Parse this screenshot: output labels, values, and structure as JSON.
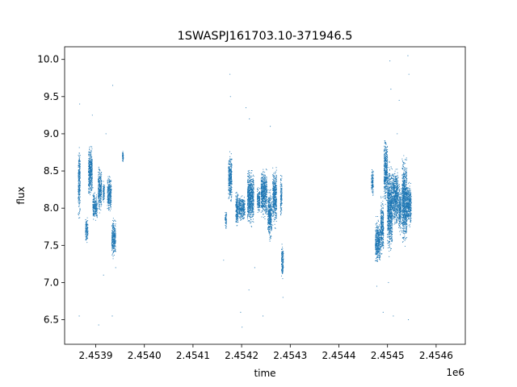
{
  "chart_data": {
    "type": "scatter",
    "title": "1SWASPJ161703.10-371946.5",
    "xlabel": "time",
    "ylabel": "flux",
    "x_offset_label": "1e6",
    "xlim": [
      2453836.0,
      2454660.0
    ],
    "ylim": [
      6.17,
      10.17
    ],
    "x_ticks": [
      2453900,
      2454000,
      2454100,
      2454200,
      2454300,
      2454400,
      2454500,
      2454600
    ],
    "x_tick_labels": [
      "2.4539",
      "2.4540",
      "2.4541",
      "2.4542",
      "2.4543",
      "2.4544",
      "2.4545",
      "2.4546"
    ],
    "y_ticks": [
      6.5,
      7.0,
      7.5,
      8.0,
      8.5,
      9.0,
      9.5,
      10.0
    ],
    "y_tick_labels": [
      "6.5",
      "7.0",
      "7.5",
      "8.0",
      "8.5",
      "9.0",
      "9.5",
      "10.0"
    ],
    "grid": false,
    "marker_color": "#1f77b4",
    "segments": [
      {
        "x": [
          2453864,
          2453868
        ],
        "y": [
          7.8,
          8.9
        ]
      },
      {
        "x": [
          2453879,
          2453884
        ],
        "y": [
          7.5,
          7.9
        ]
      },
      {
        "x": [
          2453885,
          2453893
        ],
        "y": [
          8.1,
          8.9
        ]
      },
      {
        "x": [
          2453894,
          2453898
        ],
        "y": [
          7.8,
          8.3
        ]
      },
      {
        "x": [
          2453898,
          2453903
        ],
        "y": [
          7.8,
          8.2
        ]
      },
      {
        "x": [
          2453905,
          2453912
        ],
        "y": [
          7.9,
          8.6
        ]
      },
      {
        "x": [
          2453915,
          2453918
        ],
        "y": [
          8.0,
          8.4
        ]
      },
      {
        "x": [
          2453924,
          2453932
        ],
        "y": [
          7.9,
          8.5
        ]
      },
      {
        "x": [
          2453933,
          2453941
        ],
        "y": [
          7.3,
          7.9
        ]
      },
      {
        "x": [
          2453955,
          2453957
        ],
        "y": [
          8.6,
          8.8
        ]
      },
      {
        "x": [
          2454166,
          2454169
        ],
        "y": [
          7.7,
          8.0
        ]
      },
      {
        "x": [
          2454173,
          2454180
        ],
        "y": [
          8.0,
          8.8
        ]
      },
      {
        "x": [
          2454188,
          2454193
        ],
        "y": [
          7.7,
          8.3
        ]
      },
      {
        "x": [
          2454194,
          2454207
        ],
        "y": [
          7.8,
          8.2
        ]
      },
      {
        "x": [
          2454212,
          2454225
        ],
        "y": [
          7.7,
          8.6
        ]
      },
      {
        "x": [
          2454232,
          2454238
        ],
        "y": [
          7.9,
          8.3
        ]
      },
      {
        "x": [
          2454240,
          2454252
        ],
        "y": [
          7.8,
          8.6
        ]
      },
      {
        "x": [
          2454254,
          2454262
        ],
        "y": [
          7.5,
          8.3
        ]
      },
      {
        "x": [
          2454264,
          2454272
        ],
        "y": [
          7.7,
          8.6
        ]
      },
      {
        "x": [
          2454280,
          2454283
        ],
        "y": [
          7.8,
          8.5
        ]
      },
      {
        "x": [
          2454282,
          2454286
        ],
        "y": [
          7.0,
          7.6
        ]
      },
      {
        "x": [
          2454467,
          2454471
        ],
        "y": [
          8.1,
          8.6
        ]
      },
      {
        "x": [
          2454475,
          2454485
        ],
        "y": [
          7.2,
          7.9
        ]
      },
      {
        "x": [
          2454486,
          2454492
        ],
        "y": [
          7.3,
          8.2
        ]
      },
      {
        "x": [
          2454493,
          2454500
        ],
        "y": [
          8.0,
          9.0
        ]
      },
      {
        "x": [
          2454500,
          2454510
        ],
        "y": [
          7.3,
          8.7
        ]
      },
      {
        "x": [
          2454511,
          2454522
        ],
        "y": [
          7.7,
          8.6
        ]
      },
      {
        "x": [
          2454523,
          2454528
        ],
        "y": [
          7.6,
          8.4
        ]
      },
      {
        "x": [
          2454530,
          2454540
        ],
        "y": [
          7.4,
          8.8
        ]
      },
      {
        "x": [
          2454540,
          2454549
        ],
        "y": [
          7.7,
          8.4
        ]
      }
    ],
    "outliers": [
      {
        "x": 2453867,
        "y": 9.4
      },
      {
        "x": 2453866,
        "y": 6.55
      },
      {
        "x": 2453906,
        "y": 6.43
      },
      {
        "x": 2453916,
        "y": 7.1
      },
      {
        "x": 2453935,
        "y": 9.65
      },
      {
        "x": 2453921,
        "y": 9.0
      },
      {
        "x": 2453893,
        "y": 9.25
      },
      {
        "x": 2453941,
        "y": 7.2
      },
      {
        "x": 2453934,
        "y": 6.55
      },
      {
        "x": 2454176,
        "y": 9.8
      },
      {
        "x": 2454177,
        "y": 9.5
      },
      {
        "x": 2454198,
        "y": 6.6
      },
      {
        "x": 2454201,
        "y": 6.4
      },
      {
        "x": 2454209,
        "y": 9.35
      },
      {
        "x": 2454215,
        "y": 6.9
      },
      {
        "x": 2454216,
        "y": 9.2
      },
      {
        "x": 2454244,
        "y": 6.55
      },
      {
        "x": 2454259,
        "y": 9.1
      },
      {
        "x": 2454227,
        "y": 7.2
      },
      {
        "x": 2454163,
        "y": 7.3
      },
      {
        "x": 2454285,
        "y": 6.8
      },
      {
        "x": 2454505,
        "y": 9.98
      },
      {
        "x": 2454507,
        "y": 9.6
      },
      {
        "x": 2454524,
        "y": 9.45
      },
      {
        "x": 2454542,
        "y": 10.05
      },
      {
        "x": 2454544,
        "y": 9.8
      },
      {
        "x": 2454491,
        "y": 6.6
      },
      {
        "x": 2454512,
        "y": 6.55
      },
      {
        "x": 2454543,
        "y": 6.5
      },
      {
        "x": 2454502,
        "y": 7.0
      },
      {
        "x": 2454520,
        "y": 9.0
      },
      {
        "x": 2454478,
        "y": 6.95
      }
    ]
  }
}
